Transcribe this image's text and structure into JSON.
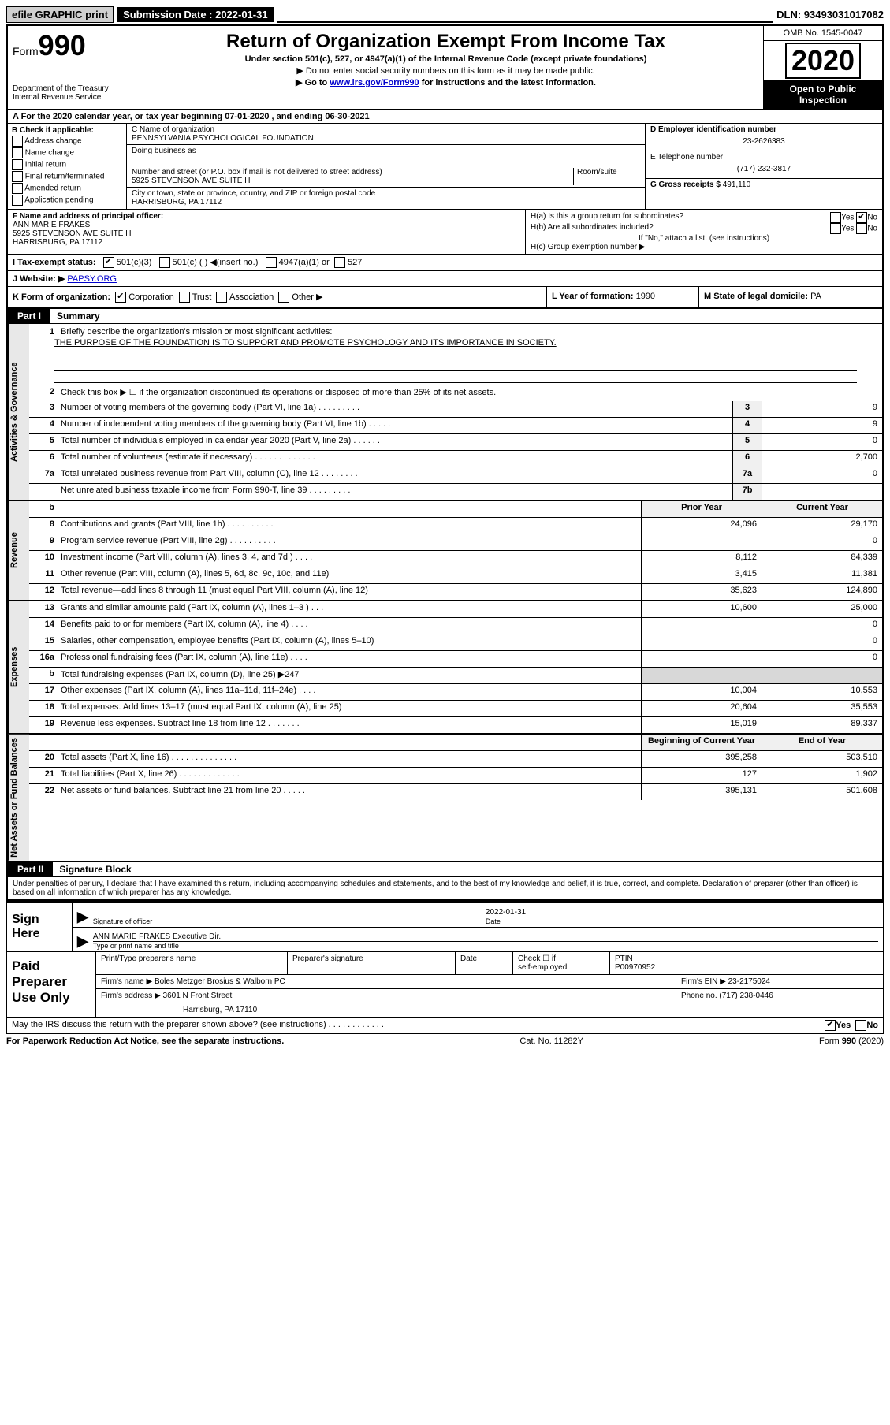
{
  "topbar": {
    "efile": "efile GRAPHIC print",
    "subdate_label": "Submission Date : 2022-01-31",
    "dln": "DLN: 93493031017082"
  },
  "header": {
    "form_word": "Form",
    "form_num": "990",
    "dept": "Department of the Treasury",
    "irs": "Internal Revenue Service",
    "title": "Return of Organization Exempt From Income Tax",
    "subtitle": "Under section 501(c), 527, or 4947(a)(1) of the Internal Revenue Code (except private foundations)",
    "note1": "▶ Do not enter social security numbers on this form as it may be made public.",
    "note2_pre": "▶ Go to ",
    "note2_link": "www.irs.gov/Form990",
    "note2_post": " for instructions and the latest information.",
    "omb": "OMB No. 1545-0047",
    "year": "2020",
    "open1": "Open to Public",
    "open2": "Inspection"
  },
  "rowA": "A For the 2020 calendar year, or tax year beginning 07-01-2020    , and ending 06-30-2021",
  "sectionB": {
    "label": "B Check if applicable:",
    "opts": [
      "Address change",
      "Name change",
      "Initial return",
      "Final return/terminated",
      "Amended return",
      "Application pending"
    ]
  },
  "sectionC": {
    "name_label": "C Name of organization",
    "name": "PENNSYLVANIA PSYCHOLOGICAL FOUNDATION",
    "dba_label": "Doing business as",
    "addr_label": "Number and street (or P.O. box if mail is not delivered to street address)",
    "room_label": "Room/suite",
    "addr": "5925 STEVENSON AVE SUITE H",
    "city_label": "City or town, state or province, country, and ZIP or foreign postal code",
    "city": "HARRISBURG, PA  17112"
  },
  "sectionD": {
    "ein_label": "D Employer identification number",
    "ein": "23-2626383",
    "phone_label": "E Telephone number",
    "phone": "(717) 232-3817",
    "gross_label": "G Gross receipts $",
    "gross": "491,110"
  },
  "sectionF": {
    "label": "F  Name and address of principal officer:",
    "name": "ANN MARIE FRAKES",
    "addr1": "5925 STEVENSON AVE SUITE H",
    "addr2": "HARRISBURG, PA  17112"
  },
  "sectionH": {
    "ha": "H(a)  Is this a group return for subordinates?",
    "hb": "H(b)  Are all subordinates included?",
    "hnote": "If \"No,\" attach a list. (see instructions)",
    "hc": "H(c)  Group exemption number ▶",
    "yes": "Yes",
    "no": "No"
  },
  "rowI": {
    "label": "I   Tax-exempt status:",
    "c3": "501(c)(3)",
    "c": "501(c) (  ) ◀(insert no.)",
    "a1": "4947(a)(1) or",
    "o527": "527"
  },
  "rowJ": {
    "label": "J   Website: ▶",
    "val": "PAPSY.ORG"
  },
  "rowK": {
    "k1": "K Form of organization:",
    "corp": "Corporation",
    "trust": "Trust",
    "assoc": "Association",
    "other": "Other ▶",
    "l": "L Year of formation:",
    "lval": "1990",
    "m": "M State of legal domicile:",
    "mval": "PA"
  },
  "part1": {
    "tag": "Part I",
    "title": "Summary"
  },
  "vlabels": {
    "gov": "Activities & Governance",
    "rev": "Revenue",
    "exp": "Expenses",
    "net": "Net Assets or Fund Balances"
  },
  "gov": {
    "l1": "Briefly describe the organization's mission or most significant activities:",
    "mission": "THE PURPOSE OF THE FOUNDATION IS TO SUPPORT AND PROMOTE PSYCHOLOGY AND ITS IMPORTANCE IN SOCIETY.",
    "l2": "Check this box ▶ ☐  if the organization discontinued its operations or disposed of more than 25% of its net assets.",
    "rows": [
      {
        "n": "3",
        "d": "Number of voting members of the governing body (Part VI, line 1a)  .  .  .  .  .  .  .  .  .",
        "b": "3",
        "v": "9"
      },
      {
        "n": "4",
        "d": "Number of independent voting members of the governing body (Part VI, line 1b)  .  .  .  .  .",
        "b": "4",
        "v": "9"
      },
      {
        "n": "5",
        "d": "Total number of individuals employed in calendar year 2020 (Part V, line 2a)  .  .  .  .  .  .",
        "b": "5",
        "v": "0"
      },
      {
        "n": "6",
        "d": "Total number of volunteers (estimate if necessary)  .  .  .  .  .  .  .  .  .  .  .  .  .",
        "b": "6",
        "v": "2,700"
      },
      {
        "n": "7a",
        "d": "Total unrelated business revenue from Part VIII, column (C), line 12  .  .  .  .  .  .  .  .",
        "b": "7a",
        "v": "0"
      },
      {
        "n": "",
        "d": "Net unrelated business taxable income from Form 990-T, line 39  .  .  .  .  .  .  .  .  .",
        "b": "7b",
        "v": ""
      }
    ]
  },
  "twoColHdr": {
    "prior": "Prior Year",
    "current": "Current Year"
  },
  "rev": [
    {
      "n": "8",
      "d": "Contributions and grants (Part VIII, line 1h)  .  .  .  .  .  .  .  .  .  .",
      "p": "24,096",
      "c": "29,170"
    },
    {
      "n": "9",
      "d": "Program service revenue (Part VIII, line 2g)  .  .  .  .  .  .  .  .  .  .",
      "p": "",
      "c": "0"
    },
    {
      "n": "10",
      "d": "Investment income (Part VIII, column (A), lines 3, 4, and 7d )  .  .  .  .",
      "p": "8,112",
      "c": "84,339"
    },
    {
      "n": "11",
      "d": "Other revenue (Part VIII, column (A), lines 5, 6d, 8c, 9c, 10c, and 11e)",
      "p": "3,415",
      "c": "11,381"
    },
    {
      "n": "12",
      "d": "Total revenue—add lines 8 through 11 (must equal Part VIII, column (A), line 12)",
      "p": "35,623",
      "c": "124,890"
    }
  ],
  "exp": [
    {
      "n": "13",
      "d": "Grants and similar amounts paid (Part IX, column (A), lines 1–3 )  .  .  .",
      "p": "10,600",
      "c": "25,000"
    },
    {
      "n": "14",
      "d": "Benefits paid to or for members (Part IX, column (A), line 4)  .  .  .  .",
      "p": "",
      "c": "0"
    },
    {
      "n": "15",
      "d": "Salaries, other compensation, employee benefits (Part IX, column (A), lines 5–10)",
      "p": "",
      "c": "0"
    },
    {
      "n": "16a",
      "d": "Professional fundraising fees (Part IX, column (A), line 11e)  .  .  .  .",
      "p": "",
      "c": "0"
    },
    {
      "n": "b",
      "d": "Total fundraising expenses (Part IX, column (D), line 25) ▶247",
      "p": "",
      "c": "",
      "shaded": true
    },
    {
      "n": "17",
      "d": "Other expenses (Part IX, column (A), lines 11a–11d, 11f–24e)  .  .  .  .",
      "p": "10,004",
      "c": "10,553"
    },
    {
      "n": "18",
      "d": "Total expenses. Add lines 13–17 (must equal Part IX, column (A), line 25)",
      "p": "20,604",
      "c": "35,553"
    },
    {
      "n": "19",
      "d": "Revenue less expenses. Subtract line 18 from line 12  .  .  .  .  .  .  .",
      "p": "15,019",
      "c": "89,337"
    }
  ],
  "netHdr": {
    "begin": "Beginning of Current Year",
    "end": "End of Year"
  },
  "net": [
    {
      "n": "20",
      "d": "Total assets (Part X, line 16)  .  .  .  .  .  .  .  .  .  .  .  .  .  .",
      "p": "395,258",
      "c": "503,510"
    },
    {
      "n": "21",
      "d": "Total liabilities (Part X, line 26)  .  .  .  .  .  .  .  .  .  .  .  .  .",
      "p": "127",
      "c": "1,902"
    },
    {
      "n": "22",
      "d": "Net assets or fund balances. Subtract line 21 from line 20  .  .  .  .  .",
      "p": "395,131",
      "c": "501,608"
    }
  ],
  "part2": {
    "tag": "Part II",
    "title": "Signature Block"
  },
  "declare": "Under penalties of perjury, I declare that I have examined this return, including accompanying schedules and statements, and to the best of my knowledge and belief, it is true, correct, and complete. Declaration of preparer (other than officer) is based on all information of which preparer has any knowledge.",
  "sign": {
    "here": "Sign Here",
    "sig_label": "Signature of officer",
    "date_label": "Date",
    "date": "2022-01-31",
    "name": "ANN MARIE FRAKES Executive Dir.",
    "name_label": "Type or print name and title"
  },
  "prep": {
    "left": "Paid Preparer Use Only",
    "h1": "Print/Type preparer's name",
    "h2": "Preparer's signature",
    "h3": "Date",
    "h4a": "Check ☐ if",
    "h4b": "self-employed",
    "h5": "PTIN",
    "ptin": "P00970952",
    "firm_label": "Firm's name    ▶",
    "firm": "Boles Metzger Brosius & Walborn PC",
    "ein_label": "Firm's EIN ▶",
    "ein": "23-2175024",
    "addr_label": "Firm's address ▶",
    "addr1": "3601 N Front Street",
    "addr2": "Harrisburg, PA  17110",
    "phone_label": "Phone no.",
    "phone": "(717) 238-0446"
  },
  "discuss": {
    "q": "May the IRS discuss this return with the preparer shown above? (see instructions)  .  .  .  .  .  .  .  .  .  .  .  .",
    "yes": "Yes",
    "no": "No"
  },
  "footer": {
    "left": "For Paperwork Reduction Act Notice, see the separate instructions.",
    "mid": "Cat. No. 11282Y",
    "right": "Form 990 (2020)"
  }
}
